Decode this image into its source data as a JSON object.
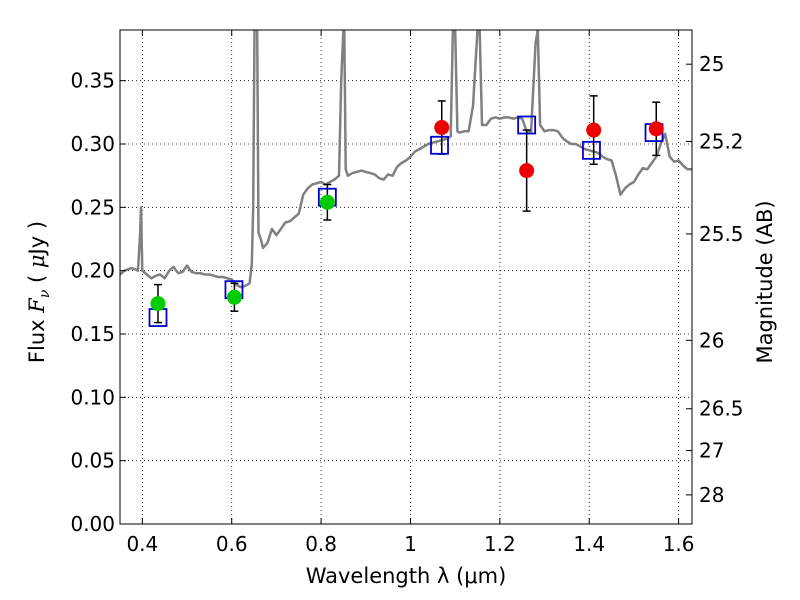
{
  "chart_data": {
    "type": "scatter",
    "xlabel": "Wavelength  λ (μm)",
    "ylabel_parts": [
      "Flux  ",
      "F",
      "ν",
      "  ( ",
      "μ",
      "Jy )"
    ],
    "ylabel_right": "Magnitude (AB)",
    "xlim": [
      0.35,
      1.63
    ],
    "ylim": [
      0.0,
      0.39
    ],
    "grid": true,
    "x_ticks": [
      0.4,
      0.6,
      0.8,
      1.0,
      1.2,
      1.4,
      1.6
    ],
    "x_tick_labels": [
      "0.4",
      "0.6",
      "0.8",
      "1",
      "1.2",
      "1.4",
      "1.6"
    ],
    "y_ticks": [
      0.0,
      0.05,
      0.1,
      0.15,
      0.2,
      0.25,
      0.3,
      0.35
    ],
    "y_tick_labels": [
      "0.00",
      "0.05",
      "0.10",
      "0.15",
      "0.20",
      "0.25",
      "0.30",
      "0.35"
    ],
    "right_ticks": [
      {
        "label": "25",
        "flux": 0.363
      },
      {
        "label": "25.2",
        "flux": 0.302
      },
      {
        "label": "25.5",
        "flux": 0.229
      },
      {
        "label": "26",
        "flux": 0.145
      },
      {
        "label": "26.5",
        "flux": 0.091
      },
      {
        "label": "27",
        "flux": 0.058
      },
      {
        "label": "28",
        "flux": 0.023
      }
    ],
    "model_spectrum": {
      "color": "#808080",
      "points": [
        [
          0.35,
          0.197
        ],
        [
          0.36,
          0.2
        ],
        [
          0.375,
          0.202
        ],
        [
          0.385,
          0.201
        ],
        [
          0.39,
          0.2
        ],
        [
          0.392,
          0.211
        ],
        [
          0.395,
          0.229
        ],
        [
          0.397,
          0.25
        ],
        [
          0.399,
          0.215
        ],
        [
          0.4,
          0.2
        ],
        [
          0.41,
          0.197
        ],
        [
          0.42,
          0.194
        ],
        [
          0.43,
          0.196
        ],
        [
          0.44,
          0.197
        ],
        [
          0.45,
          0.194
        ],
        [
          0.46,
          0.2
        ],
        [
          0.47,
          0.203
        ],
        [
          0.48,
          0.198
        ],
        [
          0.49,
          0.199
        ],
        [
          0.5,
          0.204
        ],
        [
          0.51,
          0.199
        ],
        [
          0.52,
          0.198
        ],
        [
          0.53,
          0.198
        ],
        [
          0.54,
          0.197
        ],
        [
          0.55,
          0.197
        ],
        [
          0.56,
          0.196
        ],
        [
          0.57,
          0.195
        ],
        [
          0.58,
          0.195
        ],
        [
          0.59,
          0.194
        ],
        [
          0.6,
          0.193
        ],
        [
          0.61,
          0.189
        ],
        [
          0.62,
          0.187
        ],
        [
          0.63,
          0.188
        ],
        [
          0.64,
          0.19
        ],
        [
          0.645,
          0.205
        ],
        [
          0.648,
          0.25
        ],
        [
          0.651,
          0.39
        ],
        [
          0.657,
          0.39
        ],
        [
          0.66,
          0.23
        ],
        [
          0.665,
          0.225
        ],
        [
          0.67,
          0.218
        ],
        [
          0.68,
          0.222
        ],
        [
          0.69,
          0.233
        ],
        [
          0.7,
          0.228
        ],
        [
          0.71,
          0.233
        ],
        [
          0.72,
          0.238
        ],
        [
          0.73,
          0.239
        ],
        [
          0.74,
          0.242
        ],
        [
          0.75,
          0.245
        ],
        [
          0.76,
          0.26
        ],
        [
          0.77,
          0.265
        ],
        [
          0.78,
          0.268
        ],
        [
          0.79,
          0.269
        ],
        [
          0.8,
          0.27
        ],
        [
          0.81,
          0.268
        ],
        [
          0.82,
          0.27
        ],
        [
          0.83,
          0.272
        ],
        [
          0.84,
          0.275
        ],
        [
          0.845,
          0.35
        ],
        [
          0.85,
          0.39
        ],
        [
          0.852,
          0.39
        ],
        [
          0.855,
          0.28
        ],
        [
          0.86,
          0.275
        ],
        [
          0.87,
          0.277
        ],
        [
          0.88,
          0.278
        ],
        [
          0.89,
          0.279
        ],
        [
          0.9,
          0.278
        ],
        [
          0.91,
          0.277
        ],
        [
          0.92,
          0.276
        ],
        [
          0.93,
          0.273
        ],
        [
          0.94,
          0.272
        ],
        [
          0.95,
          0.276
        ],
        [
          0.96,
          0.275
        ],
        [
          0.97,
          0.282
        ],
        [
          0.98,
          0.285
        ],
        [
          0.99,
          0.287
        ],
        [
          1.0,
          0.29
        ],
        [
          1.01,
          0.294
        ],
        [
          1.02,
          0.296
        ],
        [
          1.03,
          0.298
        ],
        [
          1.04,
          0.3
        ],
        [
          1.05,
          0.301
        ],
        [
          1.06,
          0.302
        ],
        [
          1.07,
          0.303
        ],
        [
          1.08,
          0.304
        ],
        [
          1.09,
          0.306
        ],
        [
          1.095,
          0.39
        ],
        [
          1.1,
          0.39
        ],
        [
          1.105,
          0.31
        ],
        [
          1.11,
          0.309
        ],
        [
          1.12,
          0.31
        ],
        [
          1.13,
          0.31
        ],
        [
          1.14,
          0.33
        ],
        [
          1.15,
          0.39
        ],
        [
          1.155,
          0.39
        ],
        [
          1.16,
          0.315
        ],
        [
          1.17,
          0.315
        ],
        [
          1.18,
          0.32
        ],
        [
          1.19,
          0.321
        ],
        [
          1.2,
          0.32
        ],
        [
          1.21,
          0.321
        ],
        [
          1.22,
          0.321
        ],
        [
          1.23,
          0.32
        ],
        [
          1.24,
          0.321
        ],
        [
          1.25,
          0.32
        ],
        [
          1.26,
          0.31
        ],
        [
          1.27,
          0.31
        ],
        [
          1.28,
          0.38
        ],
        [
          1.285,
          0.39
        ],
        [
          1.29,
          0.315
        ],
        [
          1.3,
          0.31
        ],
        [
          1.31,
          0.311
        ],
        [
          1.32,
          0.311
        ],
        [
          1.33,
          0.31
        ],
        [
          1.34,
          0.305
        ],
        [
          1.35,
          0.302
        ],
        [
          1.36,
          0.3
        ],
        [
          1.37,
          0.3
        ],
        [
          1.38,
          0.298
        ],
        [
          1.39,
          0.296
        ],
        [
          1.4,
          0.295
        ],
        [
          1.41,
          0.294
        ],
        [
          1.42,
          0.293
        ],
        [
          1.43,
          0.29
        ],
        [
          1.44,
          0.288
        ],
        [
          1.45,
          0.287
        ],
        [
          1.46,
          0.275
        ],
        [
          1.47,
          0.26
        ],
        [
          1.48,
          0.265
        ],
        [
          1.49,
          0.268
        ],
        [
          1.5,
          0.27
        ],
        [
          1.51,
          0.276
        ],
        [
          1.52,
          0.281
        ],
        [
          1.53,
          0.28
        ],
        [
          1.54,
          0.285
        ],
        [
          1.55,
          0.29
        ],
        [
          1.56,
          0.3
        ],
        [
          1.57,
          0.308
        ],
        [
          1.58,
          0.29
        ],
        [
          1.59,
          0.286
        ],
        [
          1.6,
          0.287
        ],
        [
          1.61,
          0.283
        ],
        [
          1.62,
          0.28
        ],
        [
          1.63,
          0.28
        ]
      ]
    },
    "model_fluxes": {
      "marker": "open-square",
      "color": "#0000cc",
      "points": [
        [
          0.435,
          0.163
        ],
        [
          0.605,
          0.185
        ],
        [
          0.814,
          0.258
        ],
        [
          1.065,
          0.299
        ],
        [
          1.26,
          0.315
        ],
        [
          1.405,
          0.295
        ],
        [
          1.545,
          0.309
        ]
      ]
    },
    "observed_optical": {
      "marker": "filled-circle",
      "color": "#00cc00",
      "points": [
        {
          "x": 0.435,
          "y": 0.174,
          "yerr": 0.015
        },
        {
          "x": 0.606,
          "y": 0.179,
          "yerr": 0.011
        },
        {
          "x": 0.814,
          "y": 0.254,
          "yerr": 0.014
        }
      ]
    },
    "observed_nir": {
      "marker": "filled-circle",
      "color": "#ee0000",
      "points": [
        {
          "x": 1.07,
          "y": 0.313,
          "yerr": 0.021
        },
        {
          "x": 1.26,
          "y": 0.279,
          "yerr": 0.032
        },
        {
          "x": 1.41,
          "y": 0.311,
          "yerr": 0.027
        },
        {
          "x": 1.55,
          "y": 0.312,
          "yerr": 0.021
        }
      ]
    }
  }
}
